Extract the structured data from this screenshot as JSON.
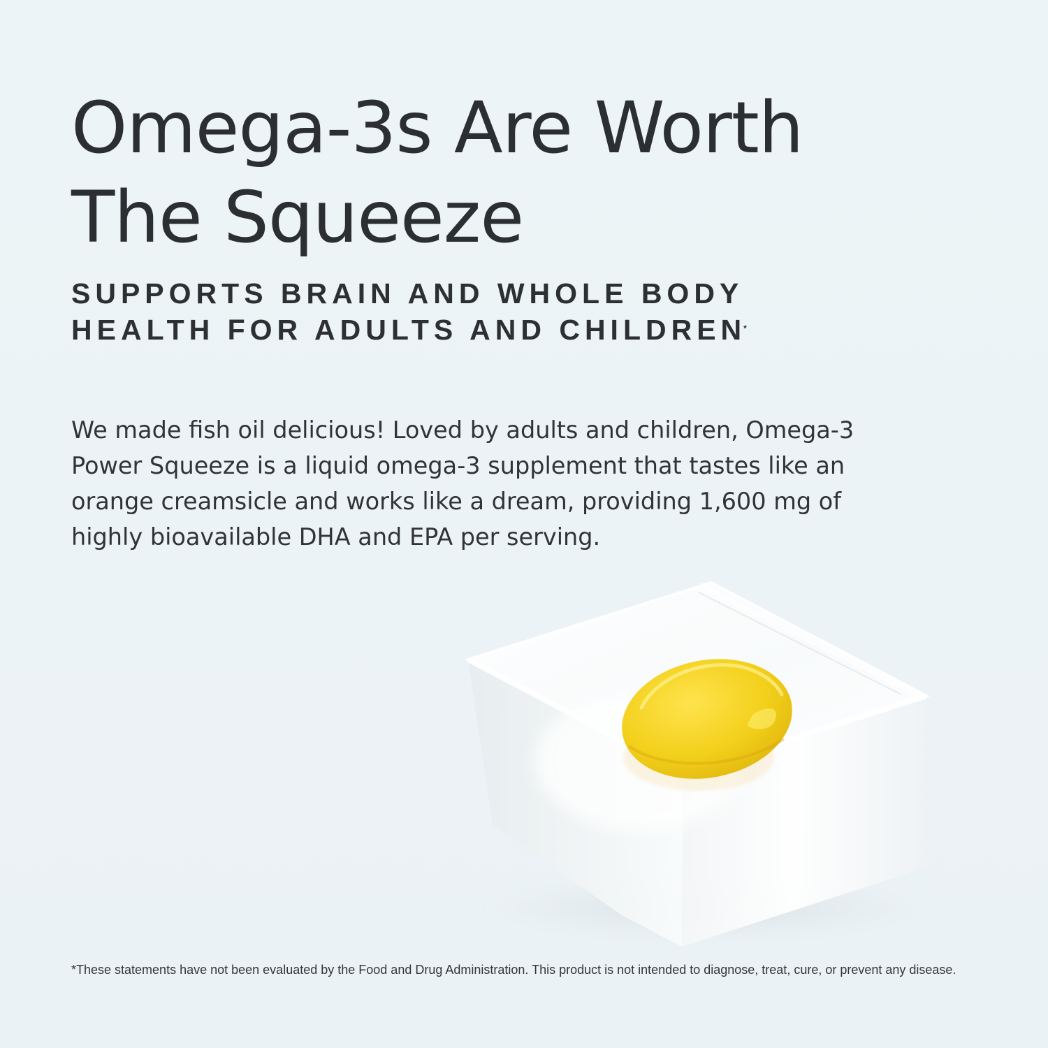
{
  "headline": "Omega-3s Are Worth The Squeeze",
  "subhead": "SUPPORTS BRAIN AND WHOLE BODY HEALTH FOR ADULTS AND CHILDREN",
  "subhead_marker": "*",
  "body": "We made fish oil delicious! Loved by adults and children, Omega-3 Power Squeeze is a liquid omega-3 supplement that tastes like an orange creamsicle and works like a dream, providing 1,600 mg of highly bioavailable DHA and EPA per serving.",
  "disclaimer": "*These statements have not been evaluated by the Food and Drug Administration. This product is not intended to diagnose, treat, cure, or prevent any disease.",
  "colors": {
    "background": "#edf4f7",
    "text": "#2c2f31",
    "supplement_drop": "#f3d41b",
    "clear_block": "#ffffff"
  },
  "illustration": {
    "icon": "fish-oil-drop-on-clear-block-icon"
  }
}
